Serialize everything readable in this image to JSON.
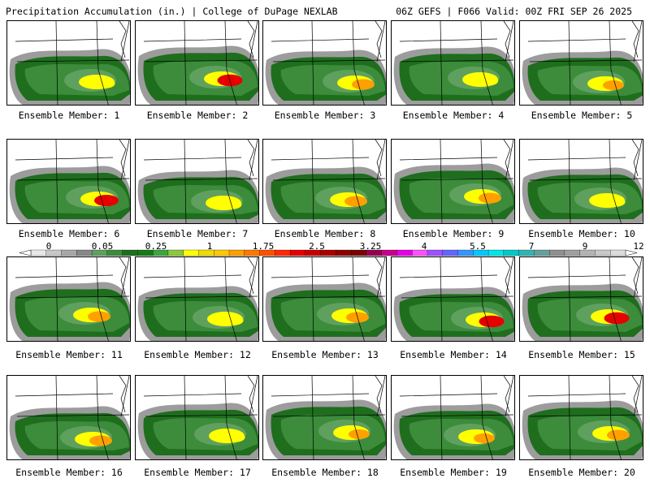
{
  "header": {
    "title_left": "Precipitation Accumulation (in.) | College of DuPage NEXLAB",
    "title_right": "06Z GEFS | F066 Valid: 00Z FRI SEP 26 2025"
  },
  "panels": [
    {
      "member": 1,
      "label": "Ensemble Member: 1",
      "max_in": 1.75
    },
    {
      "member": 2,
      "label": "Ensemble Member: 2",
      "max_in": 3.25
    },
    {
      "member": 3,
      "label": "Ensemble Member: 3",
      "max_in": 2.5
    },
    {
      "member": 4,
      "label": "Ensemble Member: 4",
      "max_in": 1.5
    },
    {
      "member": 5,
      "label": "Ensemble Member: 5",
      "max_in": 2.0
    },
    {
      "member": 6,
      "label": "Ensemble Member: 6",
      "max_in": 3.0
    },
    {
      "member": 7,
      "label": "Ensemble Member: 7",
      "max_in": 1.75
    },
    {
      "member": 8,
      "label": "Ensemble Member: 8",
      "max_in": 2.5
    },
    {
      "member": 9,
      "label": "Ensemble Member: 9",
      "max_in": 2.5
    },
    {
      "member": 10,
      "label": "Ensemble Member: 10",
      "max_in": 1.75
    },
    {
      "member": 11,
      "label": "Ensemble Member: 11",
      "max_in": 2.5
    },
    {
      "member": 12,
      "label": "Ensemble Member: 12",
      "max_in": 1.75
    },
    {
      "member": 13,
      "label": "Ensemble Member: 13",
      "max_in": 2.5
    },
    {
      "member": 14,
      "label": "Ensemble Member: 14",
      "max_in": 3.25
    },
    {
      "member": 15,
      "label": "Ensemble Member: 15",
      "max_in": 3.25
    },
    {
      "member": 16,
      "label": "Ensemble Member: 16",
      "max_in": 2.5
    },
    {
      "member": 17,
      "label": "Ensemble Member: 17",
      "max_in": 1.75
    },
    {
      "member": 18,
      "label": "Ensemble Member: 18",
      "max_in": 2.0
    },
    {
      "member": 19,
      "label": "Ensemble Member: 19",
      "max_in": 2.0
    },
    {
      "member": 20,
      "label": "Ensemble Member: 20",
      "max_in": 2.5
    }
  ],
  "colorbar": {
    "labels": [
      "0",
      "0.05",
      "0.25",
      "1",
      "1.75",
      "2.5",
      "3.25",
      "4",
      "5.5",
      "7",
      "9",
      "12"
    ],
    "colors": [
      "#e8e8e8",
      "#c8c8c8",
      "#a8a8a8",
      "#888888",
      "#5fa05f",
      "#3c8c3c",
      "#1e6e1e",
      "#147a14",
      "#3aa83a",
      "#8cc83c",
      "#ffff00",
      "#f0dc00",
      "#ffc800",
      "#ffa000",
      "#ff7800",
      "#ff5000",
      "#ff2800",
      "#e60000",
      "#c80000",
      "#aa0000",
      "#8c0000",
      "#780000",
      "#960050",
      "#c8008c",
      "#e600e6",
      "#ff50ff",
      "#a050ff",
      "#6464ff",
      "#3296ff",
      "#00c8ff",
      "#00e6e6",
      "#00c8c8",
      "#32b4b4",
      "#64a0a0",
      "#909090",
      "#a0a0a0",
      "#b4b4b4",
      "#c8c8c8",
      "#dcdcdc"
    ],
    "gray": "#9c9c9c",
    "green_dark": "#1e6e1e",
    "green_mid": "#3c8c3c",
    "green_light": "#5fa05f",
    "yellow": "#ffff00",
    "orange": "#ffa000",
    "red": "#e60000"
  }
}
